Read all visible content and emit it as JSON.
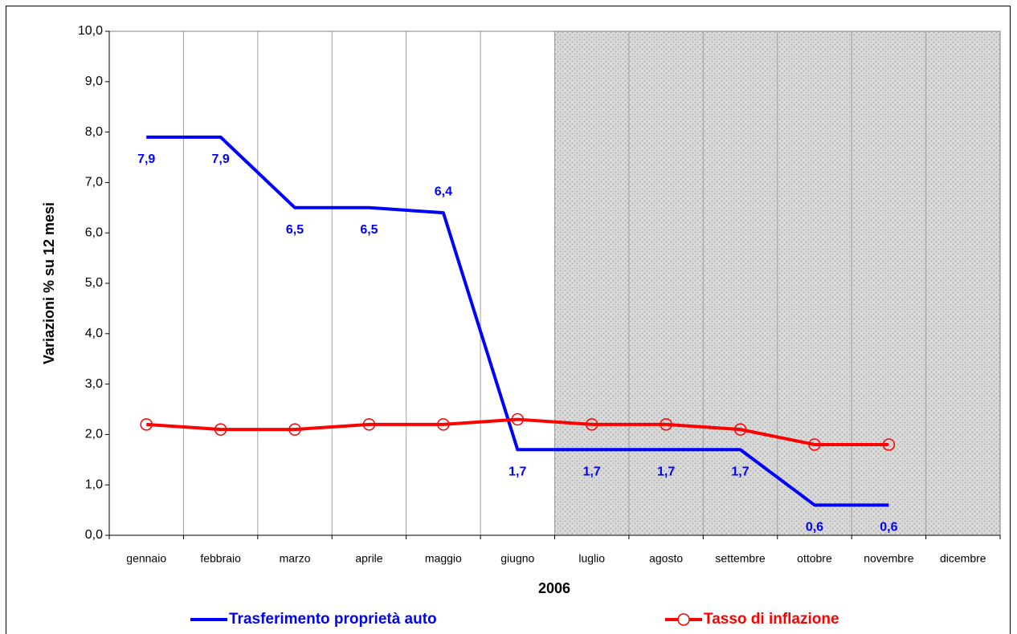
{
  "chart_data": {
    "type": "line",
    "x_label": "2006",
    "y_label": "Variazioni % su 12 mesi",
    "categories": [
      "gennaio",
      "febbraio",
      "marzo",
      "aprile",
      "maggio",
      "giugno",
      "luglio",
      "agosto",
      "settembre",
      "ottobre",
      "novembre",
      "dicembre"
    ],
    "series": [
      {
        "name": "Trasferimento proprietà auto",
        "color": "#0000ff",
        "marker": "none",
        "values": [
          7.9,
          7.9,
          6.5,
          6.5,
          6.4,
          1.7,
          1.7,
          1.7,
          1.7,
          0.6,
          0.6,
          null
        ],
        "value_labels": [
          "7,9",
          "7,9",
          "6,5",
          "6,5",
          "6,4",
          "1,7",
          "1,7",
          "1,7",
          "1,7",
          "0,6",
          "0,6",
          null
        ]
      },
      {
        "name": "Tasso di inflazione",
        "color": "#ff0000",
        "marker": "circle",
        "values": [
          2.2,
          2.1,
          2.1,
          2.2,
          2.2,
          2.3,
          2.2,
          2.2,
          2.1,
          1.8,
          1.8,
          null
        ]
      }
    ],
    "ylim": [
      0,
      10
    ],
    "yticks": [
      {
        "value": 0,
        "label": "0,0"
      },
      {
        "value": 1,
        "label": "1,0"
      },
      {
        "value": 2,
        "label": "2,0"
      },
      {
        "value": 3,
        "label": "3,0"
      },
      {
        "value": 4,
        "label": "4,0"
      },
      {
        "value": 5,
        "label": "5,0"
      },
      {
        "value": 6,
        "label": "6,0"
      },
      {
        "value": 7,
        "label": "7,0"
      },
      {
        "value": 8,
        "label": "8,0"
      },
      {
        "value": 9,
        "label": "9,0"
      },
      {
        "value": 10,
        "label": "10,0"
      }
    ],
    "grid": true,
    "legend": "bottom"
  }
}
